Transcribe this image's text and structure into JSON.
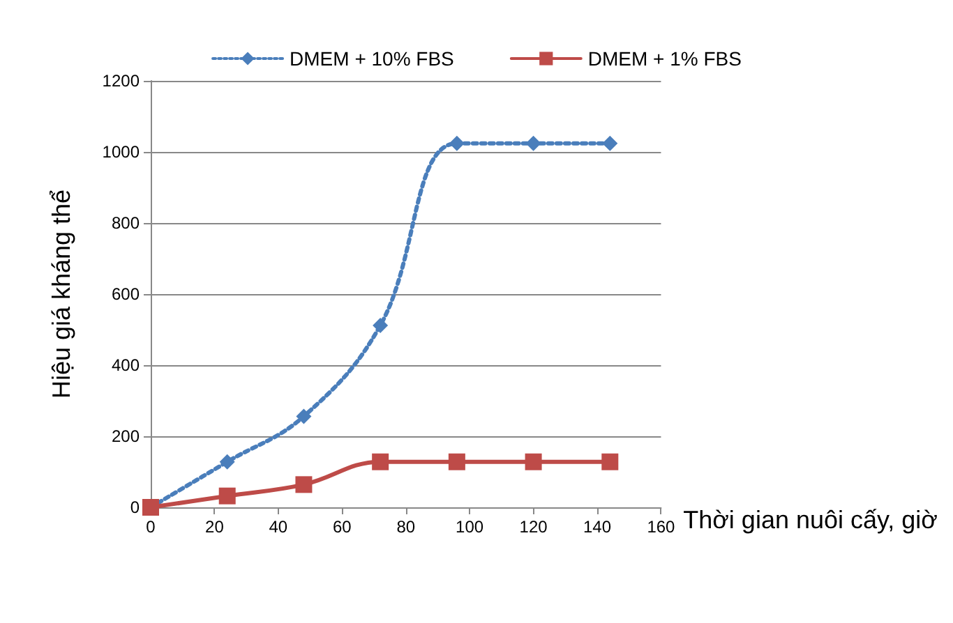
{
  "chart_data": {
    "type": "line",
    "xlabel": "Thời gian nuôi cấy, giờ",
    "ylabel": "Hiệu giá kháng thể",
    "x": [
      0,
      24,
      48,
      72,
      96,
      120,
      144
    ],
    "series": [
      {
        "name": "DMEM + 10% FBS",
        "color": "#4a7ebb",
        "marker": "diamond",
        "line_style": "dotted",
        "values": [
          0,
          128,
          256,
          512,
          1024,
          1024,
          1024
        ]
      },
      {
        "name": "DMEM + 1% FBS",
        "color": "#be4b48",
        "marker": "square",
        "line_style": "solid",
        "values": [
          0,
          32,
          64,
          128,
          128,
          128,
          128
        ]
      }
    ],
    "xlim": [
      0,
      160
    ],
    "xticks": [
      0,
      20,
      40,
      60,
      80,
      100,
      120,
      140,
      160
    ],
    "ylim": [
      0,
      1200
    ],
    "yticks": [
      0,
      200,
      400,
      600,
      800,
      1000,
      1200
    ],
    "grid": "y",
    "legend": "top"
  }
}
